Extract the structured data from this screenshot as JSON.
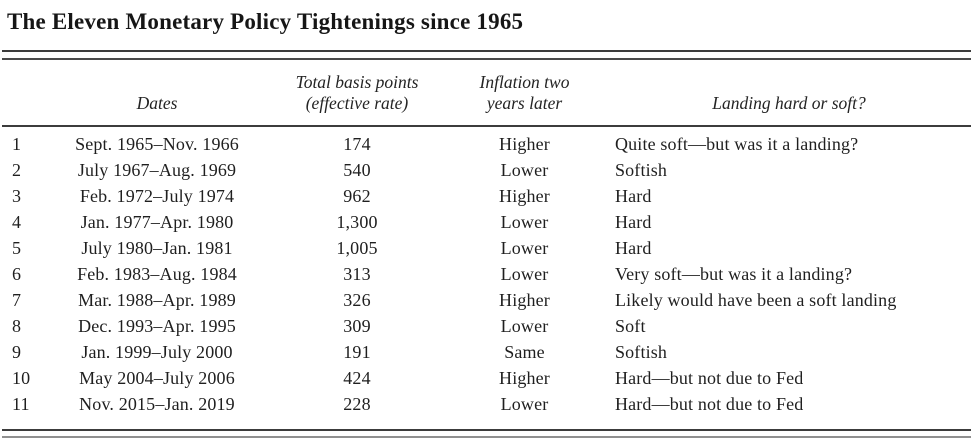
{
  "page": {
    "title": "The Eleven Monetary Policy Tightenings since 1965"
  },
  "table": {
    "headers": {
      "row_number": "",
      "dates": "Dates",
      "basis_points_line1": "Total basis points",
      "basis_points_line2": "(effective rate)",
      "inflation_line1": "Inflation two",
      "inflation_line2": "years later",
      "landing": "Landing hard or soft?"
    },
    "rows": [
      {
        "num": "1",
        "dates": "Sept. 1965–Nov. 1966",
        "basis_points": "174",
        "inflation": "Higher",
        "landing": "Quite soft—but was it a landing?"
      },
      {
        "num": "2",
        "dates": "July 1967–Aug. 1969",
        "basis_points": "540",
        "inflation": "Lower",
        "landing": "Softish"
      },
      {
        "num": "3",
        "dates": "Feb. 1972–July 1974",
        "basis_points": "962",
        "inflation": "Higher",
        "landing": "Hard"
      },
      {
        "num": "4",
        "dates": "Jan. 1977–Apr. 1980",
        "basis_points": "1,300",
        "inflation": "Lower",
        "landing": "Hard"
      },
      {
        "num": "5",
        "dates": "July 1980–Jan. 1981",
        "basis_points": "1,005",
        "inflation": "Lower",
        "landing": "Hard"
      },
      {
        "num": "6",
        "dates": "Feb. 1983–Aug. 1984",
        "basis_points": "313",
        "inflation": "Lower",
        "landing": "Very soft—but was it a landing?"
      },
      {
        "num": "7",
        "dates": "Mar. 1988–Apr. 1989",
        "basis_points": "326",
        "inflation": "Higher",
        "landing": "Likely would have been a soft landing"
      },
      {
        "num": "8",
        "dates": "Dec. 1993–Apr. 1995",
        "basis_points": "309",
        "inflation": "Lower",
        "landing": "Soft"
      },
      {
        "num": "9",
        "dates": "Jan. 1999–July 2000",
        "basis_points": "191",
        "inflation": "Same",
        "landing": "Softish"
      },
      {
        "num": "10",
        "dates": "May 2004–July 2006",
        "basis_points": "424",
        "inflation": "Higher",
        "landing": "Hard—but not due to Fed"
      },
      {
        "num": "11",
        "dates": "Nov. 2015–Jan. 2019",
        "basis_points": "228",
        "inflation": "Lower",
        "landing": "Hard—but not due to Fed"
      }
    ]
  },
  "colors": {
    "text": "#1f1f1f",
    "rule_dark": "#3c3c3c",
    "rule_light": "#909090",
    "background": "#ffffff"
  }
}
